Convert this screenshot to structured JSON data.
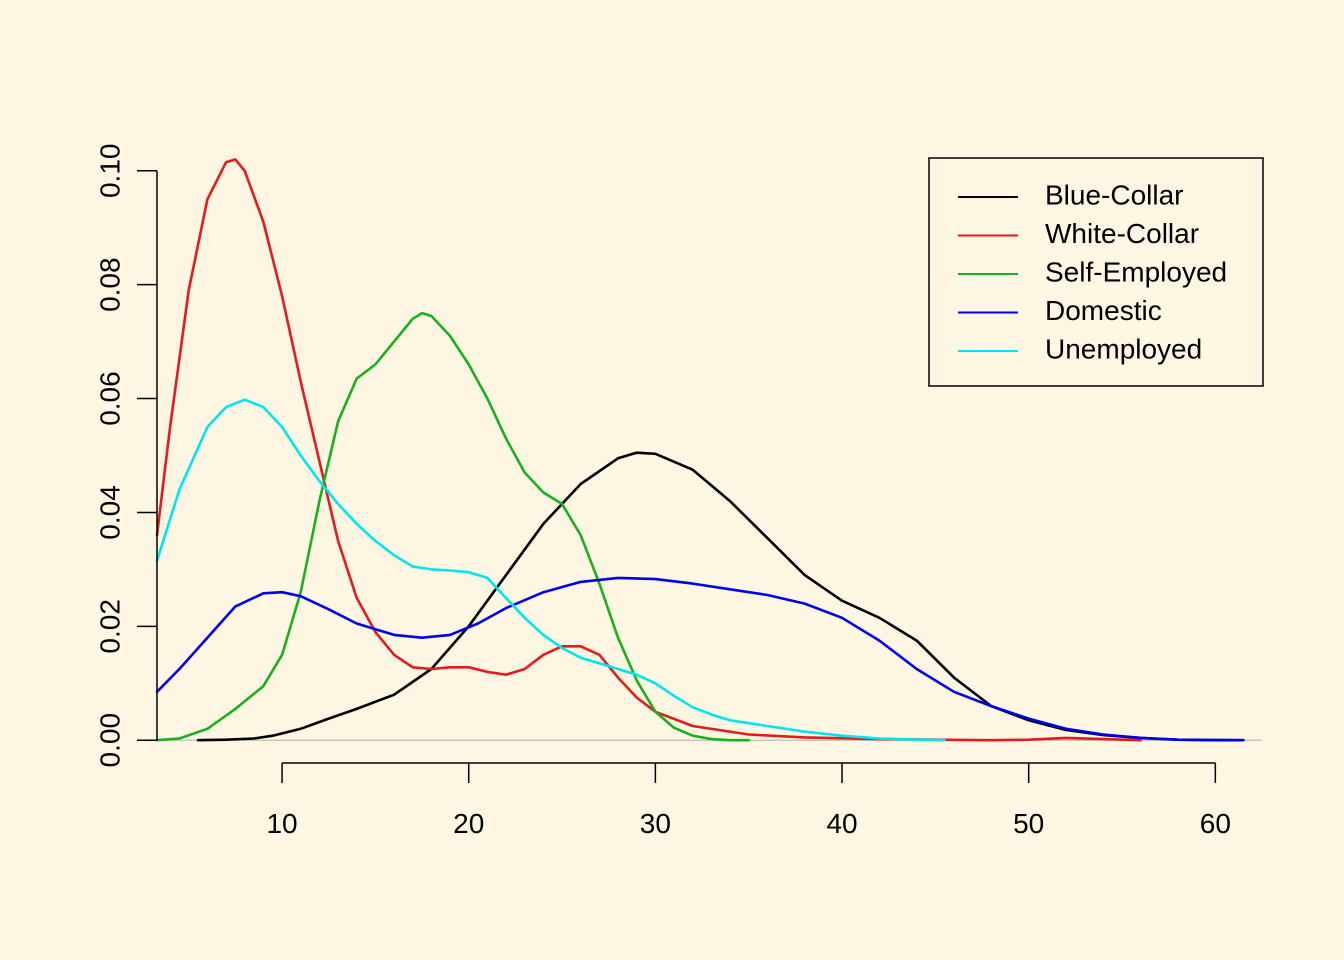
{
  "background_color": "#fdf6e3",
  "chart_data": {
    "type": "line",
    "title": "",
    "xlabel": "",
    "ylabel": "",
    "xlim": [
      3.3,
      62.5
    ],
    "ylim": [
      -0.004,
      0.104
    ],
    "x_ticks": [
      10,
      20,
      30,
      40,
      50,
      60
    ],
    "x_tick_labels": [
      "10",
      "20",
      "30",
      "40",
      "50",
      "60"
    ],
    "y_ticks": [
      0.0,
      0.02,
      0.04,
      0.06,
      0.08,
      0.1
    ],
    "y_tick_labels": [
      "0.00",
      "0.02",
      "0.04",
      "0.06",
      "0.08",
      "0.10"
    ],
    "baseline": 0,
    "baseline_color": "#b0b0b0",
    "grid": false,
    "legend": {
      "position": "top-right",
      "boxed": true
    },
    "series": [
      {
        "name": "Blue-Collar",
        "color": "#000000",
        "points": [
          [
            5.5,
            0.0
          ],
          [
            7.0,
            0.0001
          ],
          [
            8.5,
            0.0003
          ],
          [
            9.5,
            0.0008
          ],
          [
            11.0,
            0.002
          ],
          [
            12.5,
            0.0038
          ],
          [
            14.0,
            0.0055
          ],
          [
            16.0,
            0.008
          ],
          [
            18.0,
            0.0125
          ],
          [
            20.0,
            0.02
          ],
          [
            22.0,
            0.029
          ],
          [
            24.0,
            0.038
          ],
          [
            26.0,
            0.045
          ],
          [
            28.0,
            0.0495
          ],
          [
            29.0,
            0.0505
          ],
          [
            30.0,
            0.0503
          ],
          [
            32.0,
            0.0475
          ],
          [
            34.0,
            0.042
          ],
          [
            36.0,
            0.0355
          ],
          [
            38.0,
            0.029
          ],
          [
            40.0,
            0.0245
          ],
          [
            42.0,
            0.0215
          ],
          [
            44.0,
            0.0175
          ],
          [
            46.0,
            0.011
          ],
          [
            48.0,
            0.006
          ],
          [
            50.0,
            0.0035
          ],
          [
            52.0,
            0.0018
          ],
          [
            54.0,
            0.0009
          ],
          [
            56.0,
            0.0004
          ],
          [
            58.0,
            0.0001
          ],
          [
            60.0,
            0.0
          ],
          [
            61.5,
            0.0
          ]
        ]
      },
      {
        "name": "White-Collar",
        "color": "#e41a1c",
        "points": [
          [
            3.3,
            0.036
          ],
          [
            4.0,
            0.055
          ],
          [
            5.0,
            0.079
          ],
          [
            6.0,
            0.095
          ],
          [
            7.0,
            0.1015
          ],
          [
            7.5,
            0.102
          ],
          [
            8.0,
            0.1
          ],
          [
            9.0,
            0.091
          ],
          [
            10.0,
            0.078
          ],
          [
            11.0,
            0.063
          ],
          [
            12.0,
            0.049
          ],
          [
            13.0,
            0.035
          ],
          [
            14.0,
            0.025
          ],
          [
            15.0,
            0.019
          ],
          [
            16.0,
            0.015
          ],
          [
            17.0,
            0.0128
          ],
          [
            18.0,
            0.0125
          ],
          [
            19.0,
            0.0128
          ],
          [
            20.0,
            0.0128
          ],
          [
            21.0,
            0.012
          ],
          [
            22.0,
            0.0115
          ],
          [
            23.0,
            0.0125
          ],
          [
            24.0,
            0.015
          ],
          [
            25.0,
            0.0165
          ],
          [
            26.0,
            0.0165
          ],
          [
            27.0,
            0.015
          ],
          [
            28.0,
            0.011
          ],
          [
            29.0,
            0.0075
          ],
          [
            30.0,
            0.005
          ],
          [
            32.0,
            0.0025
          ],
          [
            35.0,
            0.001
          ],
          [
            38.0,
            0.0005
          ],
          [
            42.0,
            0.0002
          ],
          [
            45.0,
            0.0001
          ],
          [
            48.0,
            0.0
          ],
          [
            50.0,
            0.0001
          ],
          [
            52.0,
            0.0004
          ],
          [
            54.0,
            0.0002
          ],
          [
            56.0,
            0.0
          ]
        ]
      },
      {
        "name": "Self-Employed",
        "color": "#1ab01a",
        "points": [
          [
            3.3,
            0.0
          ],
          [
            4.5,
            0.0003
          ],
          [
            6.0,
            0.002
          ],
          [
            7.5,
            0.0055
          ],
          [
            9.0,
            0.0095
          ],
          [
            10.0,
            0.015
          ],
          [
            11.0,
            0.026
          ],
          [
            12.0,
            0.042
          ],
          [
            13.0,
            0.056
          ],
          [
            14.0,
            0.0635
          ],
          [
            15.0,
            0.066
          ],
          [
            16.0,
            0.07
          ],
          [
            17.0,
            0.074
          ],
          [
            17.5,
            0.075
          ],
          [
            18.0,
            0.0745
          ],
          [
            19.0,
            0.071
          ],
          [
            20.0,
            0.066
          ],
          [
            21.0,
            0.06
          ],
          [
            22.0,
            0.053
          ],
          [
            23.0,
            0.047
          ],
          [
            24.0,
            0.0435
          ],
          [
            25.0,
            0.0415
          ],
          [
            26.0,
            0.036
          ],
          [
            27.0,
            0.0275
          ],
          [
            28.0,
            0.018
          ],
          [
            29.0,
            0.0105
          ],
          [
            30.0,
            0.005
          ],
          [
            31.0,
            0.0022
          ],
          [
            32.0,
            0.0008
          ],
          [
            33.0,
            0.0002
          ],
          [
            34.0,
            0.0
          ],
          [
            35.0,
            0.0
          ]
        ]
      },
      {
        "name": "Domestic",
        "color": "#0000ee",
        "points": [
          [
            3.3,
            0.0085
          ],
          [
            4.5,
            0.0125
          ],
          [
            6.0,
            0.018
          ],
          [
            7.5,
            0.0235
          ],
          [
            9.0,
            0.0258
          ],
          [
            10.0,
            0.026
          ],
          [
            11.0,
            0.0253
          ],
          [
            12.5,
            0.023
          ],
          [
            14.0,
            0.0205
          ],
          [
            16.0,
            0.0185
          ],
          [
            17.5,
            0.018
          ],
          [
            19.0,
            0.0185
          ],
          [
            20.5,
            0.0205
          ],
          [
            22.0,
            0.0232
          ],
          [
            24.0,
            0.026
          ],
          [
            26.0,
            0.0278
          ],
          [
            28.0,
            0.0285
          ],
          [
            30.0,
            0.0283
          ],
          [
            32.0,
            0.0275
          ],
          [
            34.0,
            0.0265
          ],
          [
            36.0,
            0.0255
          ],
          [
            38.0,
            0.024
          ],
          [
            40.0,
            0.0215
          ],
          [
            42.0,
            0.0175
          ],
          [
            44.0,
            0.0125
          ],
          [
            46.0,
            0.0085
          ],
          [
            48.0,
            0.006
          ],
          [
            50.0,
            0.0038
          ],
          [
            52.0,
            0.002
          ],
          [
            54.0,
            0.001
          ],
          [
            56.0,
            0.0004
          ],
          [
            58.0,
            0.0001
          ],
          [
            61.5,
            0.0
          ]
        ]
      },
      {
        "name": "Unemployed",
        "color": "#00e5ee",
        "points": [
          [
            3.3,
            0.0315
          ],
          [
            4.5,
            0.044
          ],
          [
            6.0,
            0.055
          ],
          [
            7.0,
            0.0585
          ],
          [
            8.0,
            0.0598
          ],
          [
            9.0,
            0.0585
          ],
          [
            10.0,
            0.055
          ],
          [
            11.0,
            0.05
          ],
          [
            12.0,
            0.0455
          ],
          [
            13.0,
            0.0415
          ],
          [
            14.0,
            0.038
          ],
          [
            15.0,
            0.035
          ],
          [
            16.0,
            0.0325
          ],
          [
            17.0,
            0.0305
          ],
          [
            18.0,
            0.03
          ],
          [
            19.0,
            0.0298
          ],
          [
            20.0,
            0.0295
          ],
          [
            21.0,
            0.0285
          ],
          [
            22.0,
            0.025
          ],
          [
            23.0,
            0.0215
          ],
          [
            24.0,
            0.0185
          ],
          [
            25.0,
            0.0162
          ],
          [
            26.0,
            0.0145
          ],
          [
            27.0,
            0.0135
          ],
          [
            28.0,
            0.0125
          ],
          [
            29.0,
            0.0115
          ],
          [
            30.0,
            0.01
          ],
          [
            31.0,
            0.0078
          ],
          [
            32.0,
            0.0058
          ],
          [
            33.0,
            0.0045
          ],
          [
            34.0,
            0.0035
          ],
          [
            36.0,
            0.0025
          ],
          [
            38.0,
            0.0015
          ],
          [
            40.0,
            0.0008
          ],
          [
            42.0,
            0.0003
          ],
          [
            44.0,
            0.0001
          ],
          [
            45.5,
            0.0
          ]
        ]
      }
    ]
  }
}
